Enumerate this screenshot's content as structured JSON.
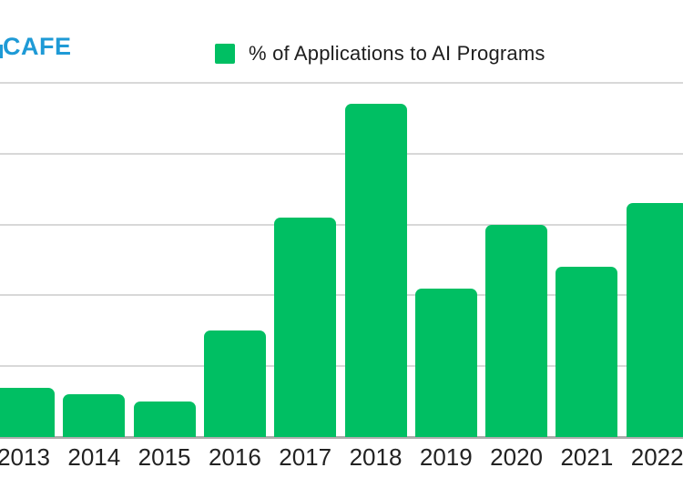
{
  "brand": {
    "logo_text": "CAFE",
    "logo_color": "#1E9AD6"
  },
  "legend": {
    "label": "% of Applications to AI Programs",
    "swatch_color": "#00BF63",
    "position": "top"
  },
  "chart_data": {
    "type": "bar",
    "title": "% of Applications to AI Programs",
    "categories": [
      "2013",
      "2014",
      "2015",
      "2016",
      "2017",
      "2018",
      "2019",
      "2020",
      "2021",
      "2022"
    ],
    "values": [
      0.7,
      0.6,
      0.5,
      1.5,
      3.1,
      4.7,
      2.1,
      3.0,
      2.4,
      3.3
    ],
    "xlabel": "",
    "ylabel": "",
    "ylim": [
      0,
      5
    ],
    "gridline_step": 1,
    "grid": true,
    "legend_position": "top",
    "y_tick_labels_visible": false,
    "bar_color": "#00BF63",
    "gridline_color": "#D8D8D8",
    "axis_line_color": "#ADADAD",
    "x_label_color": "#222222"
  }
}
